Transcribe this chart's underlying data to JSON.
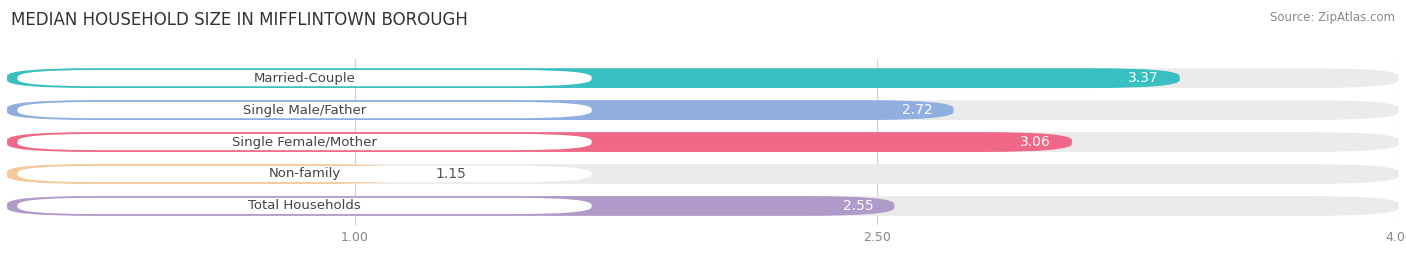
{
  "title": "MEDIAN HOUSEHOLD SIZE IN MIFFLINTOWN BOROUGH",
  "source": "Source: ZipAtlas.com",
  "categories": [
    "Married-Couple",
    "Single Male/Father",
    "Single Female/Mother",
    "Non-family",
    "Total Households"
  ],
  "values": [
    3.37,
    2.72,
    3.06,
    1.15,
    2.55
  ],
  "bar_colors": [
    "#38bfbf",
    "#90aee0",
    "#f06888",
    "#f5c896",
    "#b09aca"
  ],
  "row_bg_color": "#ebebeb",
  "label_pill_color": "#ffffff",
  "xmin": 0.0,
  "xmax": 4.0,
  "xticks": [
    1.0,
    2.5,
    4.0
  ],
  "background_color": "#ffffff",
  "title_fontsize": 12,
  "source_fontsize": 8.5,
  "bar_label_fontsize": 10,
  "cat_label_fontsize": 9.5,
  "value_inside_threshold": 1.8
}
